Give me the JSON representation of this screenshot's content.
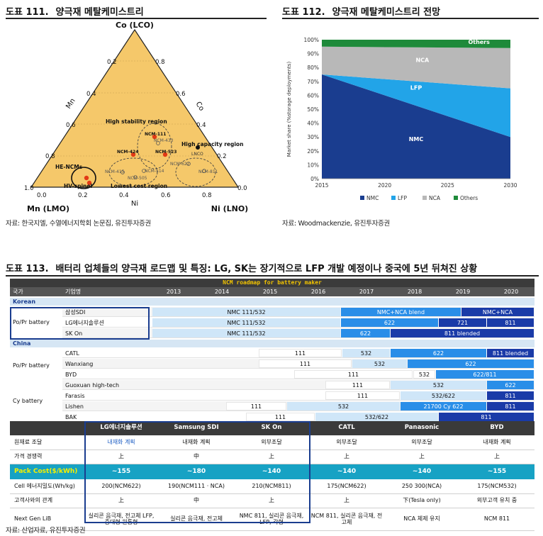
{
  "fig111": {
    "number": "도표 111.",
    "title": "양극재 메탈케미스트리",
    "source": "자료: 한국지엘, 수열에너지학회 논문집, 유진투자증권",
    "axes": {
      "top": "Co (LCO)",
      "left": "Mn (LMO)",
      "right": "Ni (LNO)",
      "mn_side": "Mn",
      "co_side": "Co",
      "ni_side": "Ni"
    },
    "bottom_ticks": [
      "0.0",
      "0.2",
      "0.4",
      "0.6",
      "0.8"
    ],
    "left_ticks": [
      "1.0",
      "0.8",
      "0.6",
      "0.4",
      "0.2"
    ],
    "right_ticks": [
      "0.0",
      "0.2",
      "0.4",
      "0.6",
      "0.8"
    ],
    "regions": {
      "stability": "High stability region",
      "capacity": "High capacity region",
      "cost": "Lowest cost region",
      "he": "HE-NCMs",
      "hv": "HV-spinel"
    },
    "points": {
      "ncm111": "NCM-111",
      "ncm433": "NCM-433",
      "ncm424": "NCM-424",
      "ncm523": "NCM-523",
      "ncm622": "NCM-622",
      "ncm811": "NCM-811",
      "lnco": "LNCO",
      "nmc415": "NCM-415",
      "nmc514": "NCM-514",
      "nmc505": "NCM-505"
    }
  },
  "fig112": {
    "number": "도표 112.",
    "title": "양극재 메탈케미스트리 전망",
    "source": "자료: Woodmackenzie, 유진투자증권",
    "ylabel": "Market share (%storage deployments)",
    "colors": {
      "NMC": "#1a3d8f",
      "LFP": "#22a4e8",
      "NCA": "#b8b8b8",
      "Others": "#1e8a3a"
    }
  },
  "chart_data": {
    "type": "area",
    "x": [
      2015,
      2030
    ],
    "series": [
      {
        "name": "NMC",
        "values": [
          75,
          30
        ]
      },
      {
        "name": "LFP",
        "values": [
          0,
          35
        ]
      },
      {
        "name": "NCA",
        "values": [
          20,
          29
        ]
      },
      {
        "name": "Others",
        "values": [
          5,
          6
        ]
      }
    ],
    "xticks": [
      "2015",
      "2020",
      "2025",
      "2030"
    ],
    "yticks": [
      "0%",
      "10%",
      "20%",
      "30%",
      "40%",
      "50%",
      "60%",
      "70%",
      "80%",
      "90%",
      "100%"
    ],
    "ylim": [
      0,
      100
    ],
    "ylabel": "Market share (%storage deployments)",
    "legend": "bottom"
  },
  "fig113": {
    "number": "도표 113.",
    "title": "배터리 업체들의 양극재 로드맵 및 특징: LG, SK는 장기적으로 LFP 개발 예정이나 중국에 5년 뒤쳐진 상황",
    "source": "자료: 산업자료, 유진투자증권",
    "roadmap_title": "NCM roadmap for battery maker",
    "col_country": "국가",
    "col_company": "기업명",
    "years": [
      "2013",
      "2014",
      "2015",
      "2016",
      "2017",
      "2018",
      "2019",
      "2020"
    ],
    "korean": "Korean",
    "china": "China",
    "pover": "Po/Pr battery",
    "cy": "Cy battery",
    "companies": [
      "삼성SDI",
      "LG에너지솔루션",
      "SK On",
      "CATL",
      "Wanxiang",
      "BYD",
      "Guoxuan high-tech",
      "Farasis",
      "Lishen",
      "BAK"
    ],
    "bars": {
      "sdi1": "NMC 111/532",
      "sdi2": "NMC+NCA blend",
      "sdi3": "NMC+NCA",
      "lg1": "NMC 111/532",
      "lg2": "622",
      "lg3": "721",
      "lg4": "811",
      "sk1": "NMC 111/532",
      "sk2": "622",
      "sk3": "811 blended",
      "catl1": "111",
      "catl2": "532",
      "catl3": "622",
      "catl4": "811 blended",
      "wx1": "111",
      "wx2": "532",
      "wx3": "622",
      "byd1": "111",
      "byd2": "532",
      "byd3": "622/811",
      "gx1": "111",
      "gx2": "532",
      "gx3": "622",
      "fa1": "111",
      "fa2": "532/622",
      "fa3": "811",
      "li1": "111",
      "li2": "532",
      "li3": "21700 Cy 622",
      "li4": "811",
      "bak1": "111",
      "bak2": "532/622",
      "bak3": "811"
    },
    "table": {
      "headers": [
        "",
        "LG에너지솔루션",
        "Samsung SDI",
        "SK On",
        "CATL",
        "Panasonic",
        "BYD"
      ],
      "rows": [
        [
          "원재료 조달",
          "내재화 계획",
          "내재화 계획",
          "외부조달",
          "외부조달",
          "외부조달",
          "내재화 계획"
        ],
        [
          "가격 경쟁력",
          "上",
          "中",
          "上",
          "上",
          "上",
          "上"
        ],
        [
          "Pack Cost($/kWh)",
          "~155",
          "~180",
          "~140",
          "~140",
          "~140",
          "~155"
        ],
        [
          "Cell 에너지밀도(Wh/kg)",
          "200(NCM622)",
          "190(NCM111 · NCA)",
          "210(NCM811)",
          "175(NCM622)",
          "250 300(NCA)",
          "175(NCM532)"
        ],
        [
          "고객사와의 관계",
          "上",
          "中",
          "上",
          "上",
          "下(Tesla only)",
          "외부고객 유치 중"
        ],
        [
          "Next Gen LiB",
          "실리콘 음극재, 전고체 LFP, 중대형 원통형",
          "실리콘 음극재, 전고체",
          "NMC 811, 실리콘 음극재, LFP, 각형",
          "NCM 811, 실리콘 음극재, 전고체",
          "NCA 체제 유지",
          "NCM 811"
        ]
      ]
    }
  }
}
